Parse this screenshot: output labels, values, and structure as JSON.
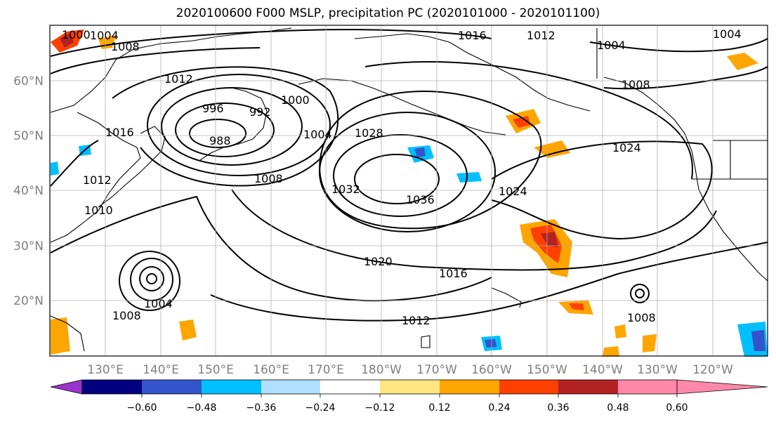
{
  "title": "2020100600 F000 MSLP, precipitation PC (2020101000 - 2020101100)",
  "lat_labels": [
    "60°N",
    "50°N",
    "40°N",
    "30°N",
    "20°N"
  ],
  "lon_labels": [
    "130°E",
    "140°E",
    "150°E",
    "160°E",
    "170°E",
    "180°W",
    "170°W",
    "160°W",
    "150°W",
    "140°W",
    "130°W",
    "120°W"
  ],
  "colorbar": {
    "colors": [
      "#9933cc",
      "#000080",
      "#3355cc",
      "#00bfff",
      "#b0e0ff",
      "#ffffff",
      "#ffe680",
      "#ffa500",
      "#ff4000",
      "#b22222",
      "#ff88aa"
    ],
    "tick_labels": [
      "−0.60",
      "−0.48",
      "−0.36",
      "−0.24",
      "−0.12",
      "0.12",
      "0.24",
      "0.36",
      "0.48",
      "0.60"
    ]
  },
  "contour_labels": [
    "1000",
    "1004",
    "1008",
    "1004",
    "1012",
    "1016",
    "1004",
    "1008",
    "1012",
    "1016",
    "996",
    "988",
    "992",
    "1000",
    "1004",
    "1008",
    "1028",
    "1032",
    "1036",
    "1024",
    "1024",
    "1020",
    "1016",
    "1012",
    "1004",
    "1008",
    "1008",
    "1010",
    "1012"
  ],
  "colors": {
    "coast": "#000000",
    "grid": "#b0b0b0",
    "isobar": "#000000"
  }
}
